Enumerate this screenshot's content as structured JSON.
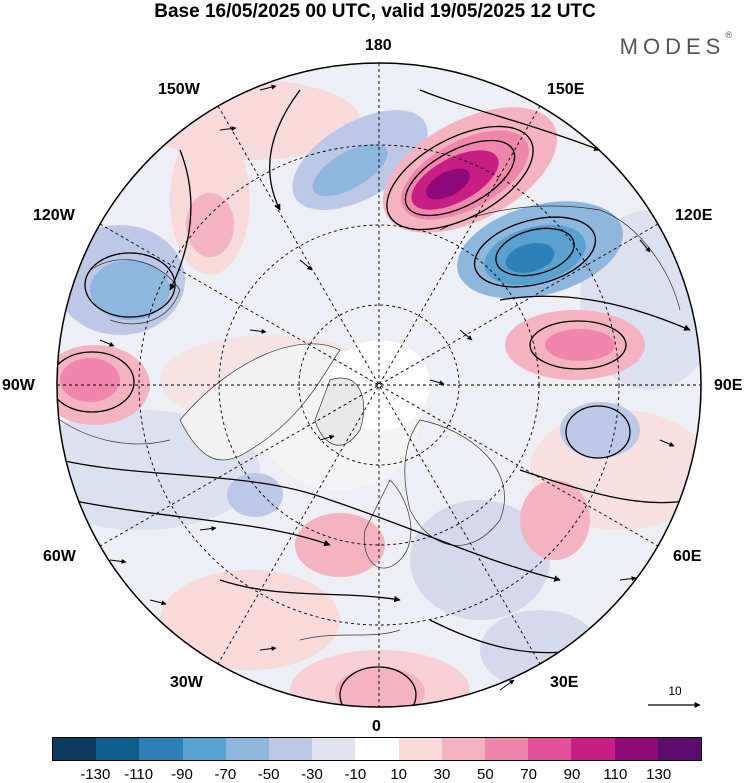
{
  "header": {
    "title": "Base 16/05/2025 00 UTC, valid 19/05/2025 12 UTC",
    "brand": "MODES",
    "brand_mark": "®"
  },
  "map": {
    "projection": "north polar stereographic",
    "longitude_labels": {
      "l180": "180",
      "l150w": "150W",
      "l150e": "150E",
      "l120w": "120W",
      "l120e": "120E",
      "l90w": "90W",
      "l90e": "90E",
      "l60w": "60W",
      "l60e": "60E",
      "l30w": "30W",
      "l30e": "30E",
      "l0": "0"
    },
    "reference_vector_label": "10"
  },
  "colorbar": {
    "colors": [
      "#0d3b5e",
      "#0f5d8f",
      "#2d80b8",
      "#5aa1d0",
      "#8fb7dd",
      "#bcc8e6",
      "#e3e3f0",
      "#ffffff",
      "#f8dada",
      "#f4b3c0",
      "#ef87ad",
      "#e25197",
      "#c71e83",
      "#8f0a78",
      "#5b0d6e"
    ],
    "tick_labels": [
      "-130",
      "-110",
      "-90",
      "-70",
      "-50",
      "-30",
      "-10",
      "10",
      "30",
      "50",
      "70",
      "90",
      "110",
      "130"
    ]
  }
}
